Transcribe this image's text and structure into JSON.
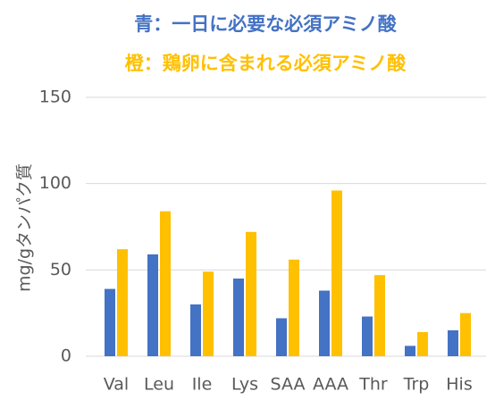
{
  "chart_data": {
    "type": "bar",
    "title": "青：一日に必要な必須アミノ酸",
    "subtitle": "橙：鶏卵に含まれる必須アミノ酸",
    "title_color": "#4472c4",
    "subtitle_color": "#ffc000",
    "y_label": "mg/gタンパク質",
    "categories": [
      "Val",
      "Leu",
      "Ile",
      "Lys",
      "SAA",
      "AAA",
      "Thr",
      "Trp",
      "His"
    ],
    "series": [
      {
        "color": "#4472c4",
        "values": [
          39,
          59,
          30,
          45,
          22,
          38,
          23,
          6,
          15
        ]
      },
      {
        "color": "#ffc000",
        "values": [
          62,
          84,
          49,
          72,
          56,
          96,
          47,
          14,
          25
        ]
      }
    ],
    "ylim": [
      0,
      150
    ],
    "yticks": [
      0,
      50,
      100,
      150
    ],
    "grid": true
  }
}
